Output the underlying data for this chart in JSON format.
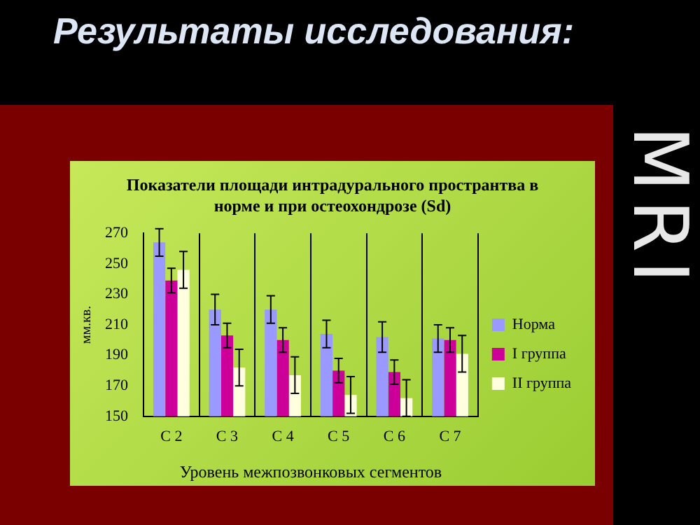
{
  "chart_data": {
    "type": "bar",
    "title": "Результаты исследования:",
    "subtitle": "Показатели площади интрадурального пространтва в норме и при остеохондрозе (Sd)",
    "xlabel": "Уровень межпозвонковых сегментов",
    "ylabel": "мм.кв.",
    "annotations": [
      "MRI"
    ],
    "categories": [
      "С 2",
      "С 3",
      "С 4",
      "С 5",
      "С 6",
      "С 7"
    ],
    "series": [
      {
        "name": "Норма",
        "color": "#9999ff",
        "values": [
          264,
          220,
          220,
          204,
          202,
          201
        ],
        "errors": [
          9,
          10,
          9,
          9,
          10,
          9
        ]
      },
      {
        "name": "I группа",
        "color": "#cc0099",
        "values": [
          239,
          203,
          200,
          180,
          179,
          200
        ],
        "errors": [
          8,
          8,
          8,
          8,
          8,
          8
        ]
      },
      {
        "name": "II группа",
        "color": "#ffffe0",
        "values": [
          246,
          182,
          177,
          164,
          162,
          191
        ],
        "errors": [
          12,
          12,
          12,
          12,
          12,
          12
        ]
      }
    ],
    "ylim": [
      150,
      270
    ],
    "yticks": [
      150,
      170,
      190,
      210,
      230,
      250,
      270
    ],
    "grid": "x",
    "legend": "right"
  }
}
